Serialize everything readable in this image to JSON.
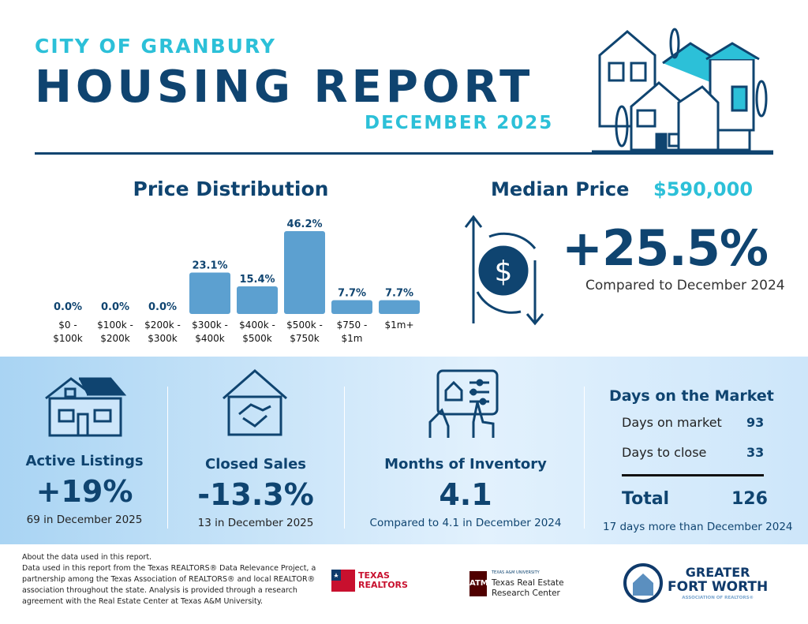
{
  "header": {
    "city": "CITY OF GRANBURY",
    "title": "HOUSING REPORT",
    "period": "DECEMBER 2025"
  },
  "price_distribution": {
    "title": "Price Distribution"
  },
  "chart_data": {
    "type": "bar",
    "title": "Price Distribution",
    "categories": [
      [
        "$0 -",
        "$100k"
      ],
      [
        "$100k -",
        "$200k"
      ],
      [
        "$200k -",
        "$300k"
      ],
      [
        "$300k -",
        "$400k"
      ],
      [
        "$400k -",
        "$500k"
      ],
      [
        "$500k -",
        "$750k"
      ],
      [
        "$750 -",
        "$1m"
      ],
      [
        "$1m+",
        ""
      ]
    ],
    "values": [
      0.0,
      0.0,
      0.0,
      23.1,
      15.4,
      46.2,
      7.7,
      7.7
    ],
    "labels": [
      "0.0%",
      "0.0%",
      "0.0%",
      "23.1%",
      "15.4%",
      "46.2%",
      "7.7%",
      "7.7%"
    ],
    "unit": "%",
    "bar_color": "#5ca0d0",
    "label_color": "#0f4470",
    "grid": false
  },
  "median": {
    "label": "Median Price",
    "value": "$590,000",
    "change": "+25.5%",
    "compare": "Compared to December 2024"
  },
  "kpis": {
    "active": {
      "title": "Active Listings",
      "value": "+19%",
      "sub": "69 in December 2025"
    },
    "closed": {
      "title": "Closed Sales",
      "value": "-13.3%",
      "sub": "13 in December 2025"
    },
    "inventory": {
      "title": "Months of Inventory",
      "value": "4.1",
      "sub": "Compared to 4.1 in December 2024"
    },
    "dom": {
      "title": "Days on the Market",
      "dom_label": "Days on market",
      "dom_value": "93",
      "dtc_label": "Days to close",
      "dtc_value": "33",
      "total_label": "Total",
      "total_value": "126",
      "sub": "17 days more than December 2024"
    }
  },
  "footer": {
    "lines": [
      "About the data used in this report.",
      "Data used in this report from the Texas REALTORS® Data Relevance Project, a partnership among the Texas Association of REALTORS® and local REALTOR® association throughout the state. Analysis is provided through a research agreement with the Real Estate Center at Texas A&M University."
    ],
    "logos": {
      "tr": [
        "TEXAS",
        "REALTORS"
      ],
      "tamu_small": "TEXAS A&M UNIVERSITY",
      "tamu": [
        "Texas Real Estate",
        "Research Center"
      ],
      "gfw": [
        "GREATER",
        "FORT WORTH",
        "ASSOCIATION OF REALTORS®"
      ]
    }
  },
  "colors": {
    "navy": "#0f4470",
    "teal": "#2cc0d8",
    "bar": "#5ca0d0"
  }
}
